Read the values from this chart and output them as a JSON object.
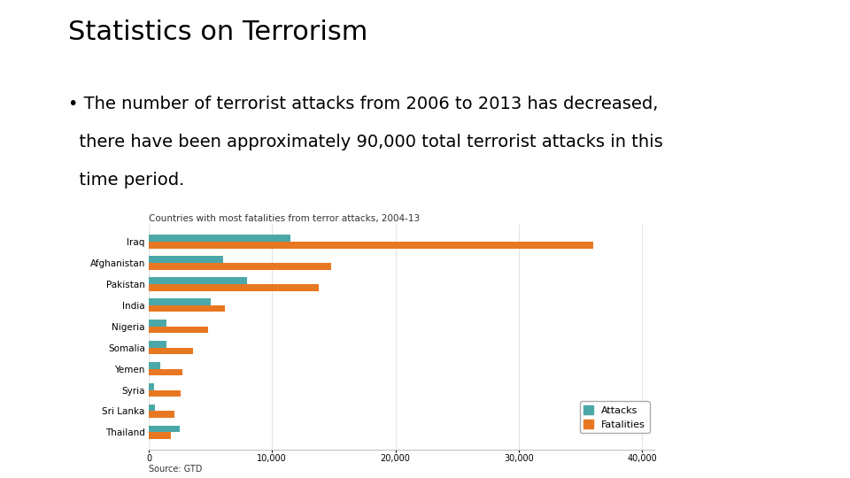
{
  "title": "Statistics on Terrorism",
  "bullet_line1": "• The number of terrorist attacks from 2006 to 2013 has decreased,",
  "bullet_line2": "  there have been approximately 90,000 total terrorist attacks in this",
  "bullet_line3": "  time period.",
  "chart_title": "Countries with most fatalities from terror attacks, 2004-13",
  "source": "Source: GTD",
  "countries": [
    "Iraq",
    "Afghanistan",
    "Pakistan",
    "India",
    "Nigeria",
    "Somalia",
    "Yemen",
    "Syria",
    "Sri Lanka",
    "Thailand"
  ],
  "attacks": [
    11500,
    6000,
    8000,
    5000,
    1400,
    1400,
    900,
    400,
    500,
    2500
  ],
  "fatalities": [
    36000,
    14800,
    13800,
    6200,
    4800,
    3600,
    2700,
    2600,
    2100,
    1800
  ],
  "attack_color": "#4ca8a8",
  "fatality_color": "#e87722",
  "background_color": "#ffffff",
  "xlim": [
    0,
    41000
  ],
  "xticks": [
    0,
    10000,
    20000,
    30000,
    40000
  ],
  "xtick_labels": [
    "0",
    "10,000",
    "20,000",
    "30,000",
    "40,000"
  ],
  "title_fontsize": 22,
  "bullet_fontsize": 14,
  "chart_title_fontsize": 7.5,
  "axis_fontsize": 7,
  "label_fontsize": 7.5,
  "legend_fontsize": 8
}
